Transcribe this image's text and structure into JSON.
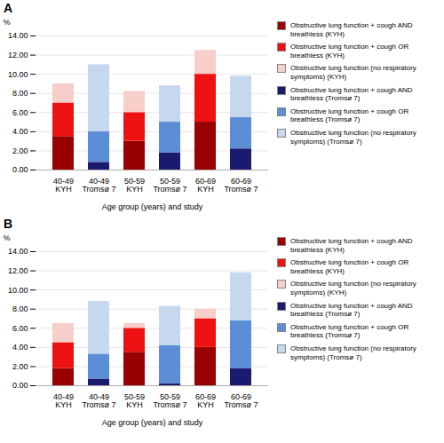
{
  "chart_data": [
    {
      "type": "bar",
      "title": "A",
      "stacked": true,
      "grid": true,
      "legend": "right",
      "xlabel": "Age group (years) and study",
      "ylabel": "%",
      "categories": [
        "40-49\nKYH",
        "40-49\nTromsø 7",
        "50-59\nKYH",
        "50-59\nTromsø 7",
        "60-69\nKYH",
        "60-69\nTromsø 7"
      ],
      "series": [
        {
          "name": "Obstructive lung function + cough AND breathless (KYH)",
          "color": "#990000",
          "values": [
            3.5,
            0.0,
            3.0,
            0.0,
            5.0,
            0.0
          ]
        },
        {
          "name": "Obstructive lung function + cough OR breathless (KYH)",
          "color": "#EE1111",
          "values": [
            3.5,
            0.0,
            3.0,
            0.0,
            5.0,
            0.0
          ]
        },
        {
          "name": "Obstructive lung function (no respiratory symptoms) (KYH)",
          "color": "#F8CECA",
          "values": [
            2.0,
            0.0,
            2.2,
            0.0,
            2.5,
            0.0
          ]
        },
        {
          "name": "Obstructive lung function + cough AND breathless (Tromsø 7)",
          "color": "#1A1A6E",
          "values": [
            0.0,
            0.8,
            0.0,
            1.8,
            0.0,
            2.2
          ]
        },
        {
          "name": "Obstructive lung function + cough OR breathless (Tromsø 7)",
          "color": "#5B8ED6",
          "values": [
            0.0,
            3.2,
            0.0,
            3.2,
            0.0,
            3.3
          ]
        },
        {
          "name": "Obstructive lung function (no respiratory symptoms) (Tromsø 7)",
          "color": "#C5D8EE",
          "values": [
            0.0,
            7.0,
            0.0,
            3.8,
            0.0,
            4.3
          ]
        }
      ],
      "ylim": [
        0,
        14
      ],
      "yticks": [
        {
          "value": 0,
          "label": "0.00"
        },
        {
          "value": 2,
          "label": "2.00"
        },
        {
          "value": 4,
          "label": "4.00"
        },
        {
          "value": 6,
          "label": "6.00"
        },
        {
          "value": 8,
          "label": "8.00"
        },
        {
          "value": 10,
          "label": "10.00"
        },
        {
          "value": 12,
          "label": "12.00"
        },
        {
          "value": 14,
          "label": "14.00"
        }
      ]
    },
    {
      "type": "bar",
      "title": "B",
      "stacked": true,
      "grid": true,
      "legend": "right",
      "xlabel": "Age group (years) and study",
      "ylabel": "%",
      "categories": [
        "40-49\nKYH",
        "40-49\nTromsø 7",
        "50-59\nKYH",
        "50-59\nTromsø 7",
        "60-69\nKYH",
        "60-69\nTromsø 7"
      ],
      "series": [
        {
          "name": "Obstructive lung function + cough AND breathless (KYH)",
          "color": "#990000",
          "values": [
            1.8,
            0.0,
            3.5,
            0.0,
            4.0,
            0.0
          ]
        },
        {
          "name": "Obstructive lung function + cough OR breathless (KYH)",
          "color": "#EE1111",
          "values": [
            2.7,
            0.0,
            2.5,
            0.0,
            3.0,
            0.0
          ]
        },
        {
          "name": "Obstructive lung function (no respiratory symptoms) (KYH)",
          "color": "#F8CECA",
          "values": [
            2.0,
            0.0,
            0.5,
            0.0,
            1.0,
            0.0
          ]
        },
        {
          "name": "Obstructive lung function + cough AND breathless (Tromsø 7)",
          "color": "#1A1A6E",
          "values": [
            0.0,
            0.7,
            0.0,
            0.2,
            0.0,
            1.8
          ]
        },
        {
          "name": "Obstructive lung function + cough OR breathless (Tromsø 7)",
          "color": "#5B8ED6",
          "values": [
            0.0,
            2.6,
            0.0,
            4.0,
            0.0,
            5.0
          ]
        },
        {
          "name": "Obstructive lung function (no respiratory symptoms) (Tromsø 7)",
          "color": "#C5D8EE",
          "values": [
            0.0,
            5.5,
            0.0,
            4.1,
            0.0,
            5.0
          ]
        }
      ],
      "ylim": [
        0,
        14
      ],
      "yticks": [
        {
          "value": 0,
          "label": "0.00"
        },
        {
          "value": 2,
          "label": "2.00"
        },
        {
          "value": 4,
          "label": "4.00"
        },
        {
          "value": 6,
          "label": "6.00"
        },
        {
          "value": 8,
          "label": "8.00"
        },
        {
          "value": 10,
          "label": "10.00"
        },
        {
          "value": 12,
          "label": "12.00"
        },
        {
          "value": 14,
          "label": "14.00"
        }
      ]
    }
  ]
}
